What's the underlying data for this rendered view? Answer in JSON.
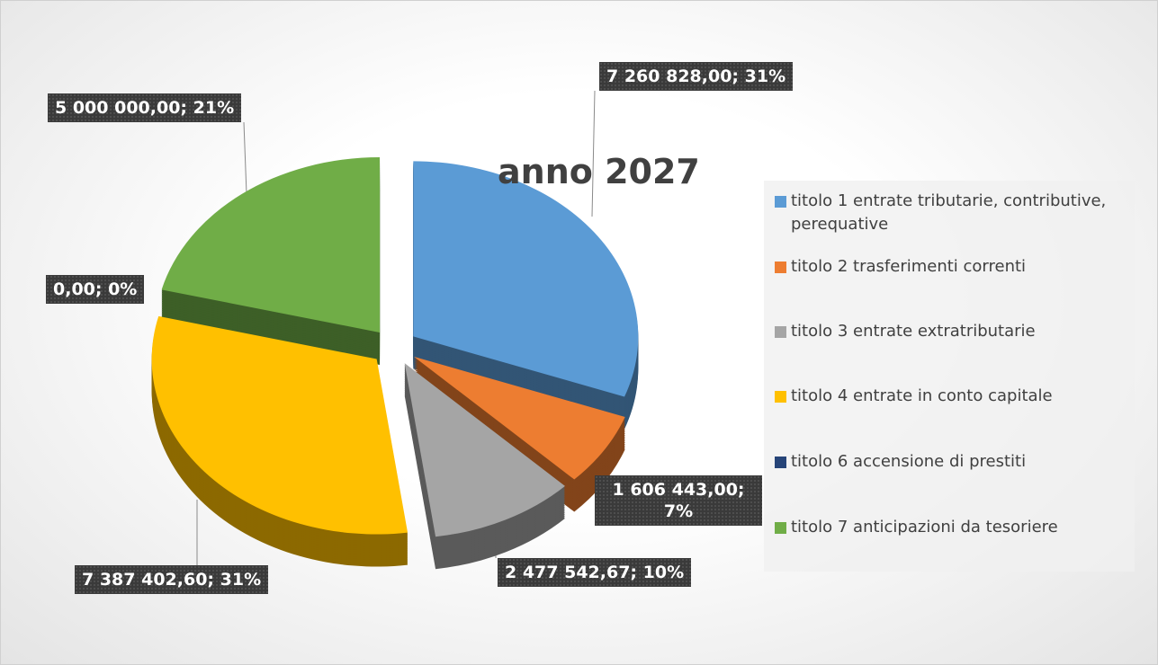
{
  "chart_data": {
    "type": "pie3d",
    "title": "anno 2027",
    "categories": [
      "titolo 1 entrate tributarie, contributive, perequative",
      "titolo 2 trasferimenti correnti",
      "titolo 3 entrate extratributarie",
      "titolo 4 entrate in conto capitale",
      "titolo 6 accensione di prestiti",
      "titolo 7 anticipazioni da tesoriere"
    ],
    "values": [
      7260828.0,
      1606443.0,
      2477542.67,
      7387402.6,
      0.0,
      5000000.0
    ],
    "value_labels": [
      "7 260 828,00; 31%",
      "1 606 443,00; 7%",
      "2 477 542,67; 10%",
      "7 387 402,60; 31%",
      "0,00; 0%",
      "5 000 000,00; 21%"
    ],
    "colors": [
      "#5b9bd5",
      "#ed7d31",
      "#a5a5a5",
      "#ffc000",
      "#264478",
      "#70ad47"
    ],
    "legend": "right"
  }
}
